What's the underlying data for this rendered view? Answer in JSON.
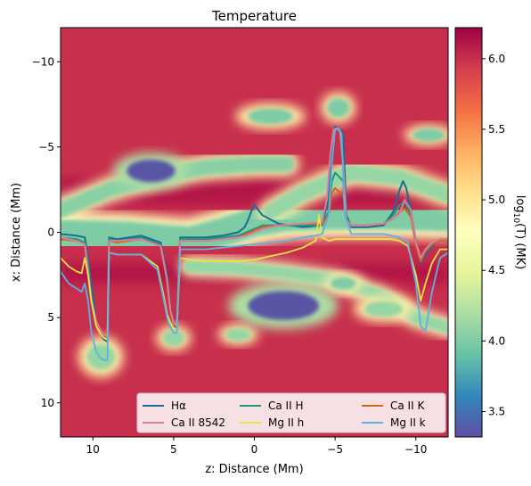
{
  "chart_data": {
    "type": "heatmap",
    "title": "Temperature",
    "xlabel": "z: Distance (Mm)",
    "ylabel": "x: Distance (Mm)",
    "colorbar_label": "log10(T) (MK)",
    "colorbar_label_parts": {
      "base": "log",
      "sub": "10",
      "rest": "(T) (MK)"
    },
    "colormap": "Spectral_r",
    "colorbar_range": [
      3.32,
      6.22
    ],
    "colorbar_ticks": [
      {
        "value": 3.5,
        "label": "3.5"
      },
      {
        "value": 4.0,
        "label": "4.0"
      },
      {
        "value": 4.5,
        "label": "4.5"
      },
      {
        "value": 5.0,
        "label": "5.0"
      },
      {
        "value": 5.5,
        "label": "5.5"
      },
      {
        "value": 6.0,
        "label": "6.0"
      }
    ],
    "xlim": [
      12,
      -12
    ],
    "ylim": [
      12,
      -12
    ],
    "xticks": [
      {
        "value": 10,
        "label": "10"
      },
      {
        "value": 5,
        "label": "5"
      },
      {
        "value": 0,
        "label": "0"
      },
      {
        "value": -5,
        "label": "−5"
      },
      {
        "value": -10,
        "label": "−10"
      }
    ],
    "yticks": [
      {
        "value": -10,
        "label": "−10"
      },
      {
        "value": -5,
        "label": "−5"
      },
      {
        "value": 0,
        "label": "0"
      },
      {
        "value": 5,
        "label": "5"
      },
      {
        "value": 10,
        "label": "10"
      }
    ],
    "legend_placement": "lower-center",
    "legend_columns": 3,
    "background_value": 6.0,
    "temperature_regions": [
      {
        "kind": "band",
        "value": 4.0,
        "halo": 4.8,
        "points": [
          [
            12,
            0.1
          ],
          [
            8,
            0.2
          ],
          [
            4,
            0.5
          ],
          [
            2,
            0.0
          ],
          [
            0,
            -0.6
          ],
          [
            -2,
            -0.9
          ],
          [
            -5,
            -1.0
          ],
          [
            -8,
            -1.0
          ],
          [
            -12,
            -0.9
          ]
        ],
        "width": 1.8
      },
      {
        "kind": "band",
        "value": 4.05,
        "halo": 4.85,
        "points": [
          [
            12,
            -1.3
          ],
          [
            9,
            -2.5
          ],
          [
            6,
            -3.3
          ],
          [
            3,
            -3.8
          ],
          [
            0,
            -4.0
          ],
          [
            -2,
            -4.0
          ]
        ],
        "width": 1.0
      },
      {
        "kind": "band",
        "value": 4.1,
        "halo": 4.9,
        "points": [
          [
            -1,
            -1.2
          ],
          [
            -3,
            -2.3
          ],
          [
            -6,
            -3.5
          ],
          [
            -9,
            -3.2
          ],
          [
            -12,
            -2.2
          ]
        ],
        "width": 1.0
      },
      {
        "kind": "band",
        "value": 4.1,
        "halo": 4.8,
        "points": [
          [
            4,
            2.0
          ],
          [
            1,
            2.1
          ],
          [
            -2,
            2.4
          ],
          [
            -5,
            2.8
          ],
          [
            -8,
            3.8
          ],
          [
            -10,
            5.0
          ],
          [
            -12,
            5.6
          ]
        ],
        "width": 0.8
      },
      {
        "kind": "blob",
        "value": 4.1,
        "halo": 4.9,
        "center": [
          9.5,
          7.3
        ],
        "rx": 0.9,
        "ry": 0.8
      },
      {
        "kind": "blob",
        "value": 4.1,
        "halo": 4.9,
        "center": [
          5.0,
          6.2
        ],
        "rx": 0.7,
        "ry": 0.5
      },
      {
        "kind": "blob",
        "value": 4.0,
        "halo": 4.9,
        "center": [
          -5.2,
          -7.3
        ],
        "rx": 0.7,
        "ry": 0.6
      },
      {
        "kind": "blob",
        "value": 4.0,
        "halo": 4.9,
        "center": [
          -1.0,
          -6.8
        ],
        "rx": 1.4,
        "ry": 0.5
      },
      {
        "kind": "blob",
        "value": 4.0,
        "halo": 4.9,
        "center": [
          -10.8,
          -5.7
        ],
        "rx": 1.0,
        "ry": 0.4
      },
      {
        "kind": "blob",
        "value": 4.1,
        "halo": 4.9,
        "center": [
          -8.0,
          4.5
        ],
        "rx": 1.2,
        "ry": 0.5
      },
      {
        "kind": "blob",
        "value": 4.0,
        "halo": 4.9,
        "center": [
          -5.5,
          3.0
        ],
        "rx": 0.8,
        "ry": 0.4
      },
      {
        "kind": "blob",
        "value": 4.1,
        "halo": 4.9,
        "center": [
          1.0,
          6.0
        ],
        "rx": 0.8,
        "ry": 0.4
      },
      {
        "kind": "blob",
        "value": 3.35,
        "halo": 4.2,
        "center": [
          6.4,
          -3.6
        ],
        "rx": 1.5,
        "ry": 0.7
      },
      {
        "kind": "blob",
        "value": 3.35,
        "halo": 4.2,
        "center": [
          -1.8,
          4.3
        ],
        "rx": 2.2,
        "ry": 0.9
      }
    ],
    "series": [
      {
        "name": "Hα",
        "color": "#1a6e96",
        "width": 2.0,
        "x": [
          12,
          11,
          10.5,
          10.3,
          10.1,
          9.8,
          9.5,
          9.3,
          9.1,
          9.0,
          8.5,
          7.0,
          5.8,
          5.4,
          5.2,
          5.0,
          4.8,
          4.6,
          4.0,
          3.0,
          2.0,
          1.0,
          0.6,
          0.4,
          0.2,
          0.0,
          -0.5,
          -1.5,
          -3.0,
          -4.2,
          -4.6,
          -4.8,
          -5.0,
          -5.2,
          -5.5,
          -5.7,
          -6.0,
          -7.0,
          -8.0,
          -8.6,
          -9.0,
          -9.2,
          -9.4,
          -9.7,
          -10.0,
          -10.3,
          -10.6,
          -11.0,
          -11.5,
          -12
        ],
        "y": [
          0.1,
          0.2,
          0.3,
          1.5,
          3.0,
          5.2,
          6.0,
          6.3,
          6.4,
          0.3,
          0.4,
          0.2,
          0.6,
          2.5,
          4.5,
          5.5,
          5.7,
          0.3,
          0.3,
          0.3,
          0.2,
          0.0,
          -0.3,
          -0.7,
          -1.2,
          -1.6,
          -1.0,
          -0.5,
          -0.3,
          -0.4,
          -2.0,
          -5.0,
          -6.2,
          -6.1,
          -5.8,
          -1.0,
          -0.3,
          -0.3,
          -0.4,
          -1.2,
          -2.5,
          -3.0,
          -2.6,
          -1.3,
          0.5,
          1.8,
          1.3,
          0.8,
          0.4,
          0.4
        ]
      },
      {
        "name": "Ca II H",
        "color": "#1a9a7a",
        "width": 2.0,
        "x": [
          12,
          11,
          10.5,
          10.3,
          10.1,
          9.8,
          9.5,
          9.3,
          9.1,
          9.0,
          8.5,
          7.0,
          5.8,
          5.4,
          5.2,
          5.0,
          4.8,
          4.6,
          4.0,
          3.0,
          2.0,
          1.0,
          0.5,
          0.0,
          -0.5,
          -1.5,
          -3.0,
          -4.2,
          -4.6,
          -4.8,
          -5.0,
          -5.2,
          -5.5,
          -5.7,
          -6.0,
          -7.0,
          -8.0,
          -8.6,
          -9.0,
          -9.3,
          -9.7,
          -10.0,
          -10.3,
          -10.6,
          -11.0,
          -11.5,
          -12
        ],
        "y": [
          0.3,
          0.4,
          0.6,
          2.0,
          3.8,
          5.3,
          5.9,
          6.1,
          6.2,
          0.4,
          0.5,
          0.3,
          0.7,
          2.8,
          4.6,
          5.3,
          5.5,
          0.4,
          0.4,
          0.4,
          0.3,
          0.2,
          0.0,
          -0.2,
          -0.4,
          -0.4,
          -0.4,
          -0.4,
          -1.2,
          -3.0,
          -3.5,
          -3.3,
          -3.0,
          -0.8,
          -0.4,
          -0.4,
          -0.5,
          -1.0,
          -1.6,
          -1.8,
          -1.0,
          0.7,
          1.6,
          1.0,
          0.6,
          0.4,
          0.4
        ]
      },
      {
        "name": "Ca II K",
        "color": "#d1661f",
        "width": 2.0,
        "x": [
          12,
          11,
          10.5,
          10.3,
          10.1,
          9.8,
          9.5,
          9.3,
          9.1,
          9.0,
          8.5,
          7.0,
          5.8,
          5.4,
          5.2,
          5.0,
          4.8,
          4.6,
          4.0,
          3.0,
          2.0,
          1.0,
          0.5,
          0.0,
          -0.5,
          -1.5,
          -3.0,
          -4.2,
          -4.6,
          -4.8,
          -5.0,
          -5.2,
          -5.5,
          -5.7,
          -6.0,
          -7.0,
          -8.0,
          -8.6,
          -9.0,
          -9.3,
          -9.7,
          -10.0,
          -10.3,
          -10.6,
          -11.0,
          -11.5,
          -12
        ],
        "y": [
          0.4,
          0.5,
          0.7,
          2.2,
          4.0,
          5.4,
          5.9,
          6.1,
          6.2,
          0.5,
          0.6,
          0.4,
          0.8,
          2.9,
          4.7,
          5.4,
          5.5,
          0.5,
          0.5,
          0.5,
          0.4,
          0.3,
          0.1,
          -0.1,
          -0.3,
          -0.4,
          -0.5,
          -0.5,
          -1.0,
          -2.3,
          -2.6,
          -2.4,
          -2.2,
          -0.7,
          -0.4,
          -0.4,
          -0.5,
          -0.8,
          -1.2,
          -1.4,
          -0.9,
          0.8,
          1.7,
          1.1,
          0.7,
          0.5,
          0.5
        ]
      },
      {
        "name": "Ca II 8542",
        "color": "#d77f9e",
        "width": 2.0,
        "x": [
          12,
          11,
          10.5,
          10.3,
          10.1,
          9.8,
          9.5,
          9.3,
          9.1,
          9.0,
          8.5,
          7.0,
          5.8,
          5.4,
          5.2,
          5.0,
          4.8,
          4.6,
          4.0,
          3.0,
          2.0,
          1.0,
          0.5,
          0.0,
          -0.5,
          -1.5,
          -3.0,
          -4.2,
          -4.5,
          -4.7,
          -4.9,
          -5.1,
          -5.3,
          -5.5,
          -5.7,
          -6.0,
          -7.0,
          -8.0,
          -8.6,
          -9.0,
          -9.3,
          -9.7,
          -10.0,
          -10.3,
          -10.6,
          -11.0,
          -11.5,
          -12
        ],
        "y": [
          0.3,
          0.5,
          0.7,
          2.2,
          3.9,
          5.2,
          5.8,
          6.0,
          6.1,
          0.5,
          0.5,
          0.4,
          0.8,
          2.8,
          4.6,
          5.3,
          5.5,
          0.5,
          0.5,
          0.5,
          0.4,
          0.3,
          0.2,
          0.0,
          -0.2,
          -0.4,
          -0.5,
          -0.6,
          -2.0,
          -4.5,
          -6.0,
          -6.1,
          -5.9,
          -4.0,
          -0.7,
          -0.4,
          -0.4,
          -0.5,
          -0.8,
          -1.1,
          -1.9,
          -1.3,
          0.6,
          1.5,
          1.0,
          0.6,
          0.4,
          0.4
        ]
      },
      {
        "name": "Mg II h",
        "color": "#e8e24a",
        "width": 1.8,
        "x": [
          12,
          11.5,
          11,
          10.7,
          10.5,
          10.3,
          10.1,
          9.8,
          9.5,
          9.3,
          9.1,
          9.0,
          8.5,
          7.0,
          6.0,
          5.6,
          5.4,
          5.2,
          5.0,
          4.8,
          4.6,
          4.0,
          3.0,
          2.0,
          1.0,
          0.0,
          -1.0,
          -2.0,
          -3.0,
          -3.8,
          -4.0,
          -4.2,
          -4.6,
          -5.0,
          -6.0,
          -7.0,
          -8.0,
          -8.5,
          -9.0,
          -9.5,
          -10.0,
          -10.3,
          -10.6,
          -11.0,
          -11.5,
          -12
        ],
        "y": [
          1.5,
          2.0,
          2.3,
          2.4,
          1.5,
          2.5,
          4.0,
          5.5,
          6.0,
          6.2,
          6.3,
          1.2,
          1.3,
          1.3,
          2.0,
          3.8,
          4.8,
          5.3,
          5.6,
          5.7,
          1.5,
          1.6,
          1.7,
          1.7,
          1.7,
          1.6,
          1.4,
          1.2,
          0.9,
          0.5,
          -1.0,
          0.3,
          0.5,
          0.4,
          0.4,
          0.4,
          0.4,
          0.4,
          0.5,
          0.8,
          2.5,
          4.0,
          3.0,
          1.8,
          1.0,
          1.0
        ]
      },
      {
        "name": "Mg II k",
        "color": "#5ab3e0",
        "width": 1.8,
        "x": [
          12,
          11.5,
          11,
          10.7,
          10.5,
          10.3,
          10.1,
          9.8,
          9.5,
          9.3,
          9.1,
          9.0,
          8.5,
          7.0,
          6.0,
          5.6,
          5.4,
          5.2,
          5.0,
          4.8,
          4.6,
          4.0,
          3.0,
          2.0,
          1.0,
          0.0,
          -1.0,
          -2.0,
          -3.0,
          -3.8,
          -4.2,
          -4.6,
          -4.8,
          -5.0,
          -5.2,
          -5.4,
          -5.6,
          -6.0,
          -7.0,
          -8.0,
          -8.5,
          -9.0,
          -9.5,
          -10.0,
          -10.3,
          -10.6,
          -11.0,
          -11.5,
          -12
        ],
        "y": [
          2.3,
          3.0,
          3.3,
          3.5,
          3.0,
          4.0,
          5.8,
          7.0,
          7.4,
          7.5,
          7.5,
          1.2,
          1.3,
          1.3,
          2.2,
          4.0,
          5.0,
          5.6,
          5.9,
          5.9,
          1.0,
          1.0,
          1.0,
          0.9,
          0.8,
          0.7,
          0.6,
          0.5,
          0.3,
          0.2,
          0.1,
          -1.0,
          -4.0,
          -6.0,
          -6.1,
          -5.8,
          -1.0,
          0.1,
          0.1,
          0.1,
          0.2,
          0.3,
          0.6,
          3.0,
          5.5,
          5.8,
          3.5,
          1.5,
          1.2
        ]
      }
    ]
  }
}
